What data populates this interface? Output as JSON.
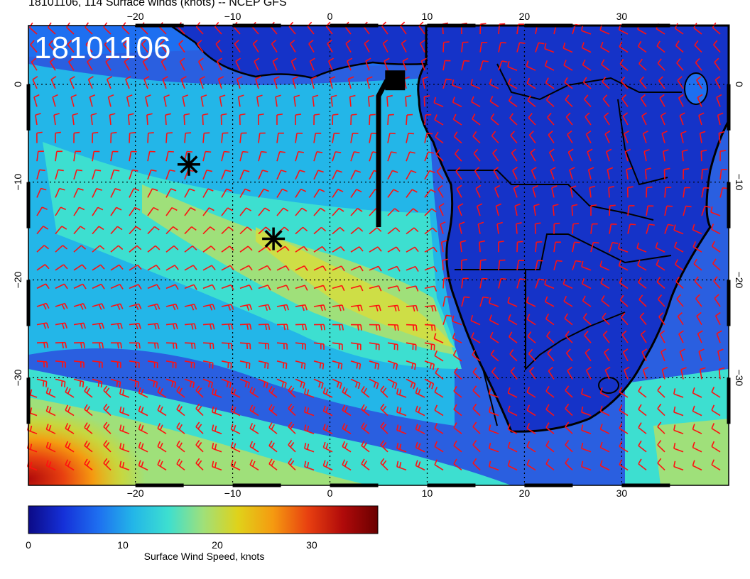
{
  "title": "18101106, 114 Surface winds (knots) -- NCEP GFS",
  "stamp": "18101106",
  "colorbar": {
    "label": "Surface Wind Speed, knots",
    "ticks": [
      "0",
      "10",
      "20",
      "30"
    ],
    "range": [
      0,
      37
    ],
    "colors": [
      "#0b0a86",
      "#1530d8",
      "#1e6ff0",
      "#23b6e8",
      "#3ddfd0",
      "#9fe07a",
      "#e0d21a",
      "#f59a10",
      "#e84010",
      "#b00a0a",
      "#6a0000"
    ]
  },
  "map": {
    "lon_range": [
      -31,
      41
    ],
    "lat_range": [
      -41,
      6
    ],
    "lon_ticks_top": [
      "−20",
      "−10",
      "0",
      "10",
      "20",
      "30"
    ],
    "lon_ticks_bottom": [
      "−20",
      "−10",
      "0",
      "10",
      "20",
      "30"
    ],
    "lat_ticks_left": [
      "0",
      "−10",
      "−20",
      "−30"
    ],
    "lat_ticks_right": [
      "0",
      "−10",
      "−20",
      "−30"
    ],
    "grid": true
  },
  "track": [
    {
      "lon": 5.0,
      "lat": -14.6
    },
    {
      "lon": 5.0,
      "lat": -1.2
    },
    {
      "lon": 5.8,
      "lat": 0.3
    },
    {
      "lon": 6.8,
      "lat": 0.3
    }
  ],
  "markers": [
    {
      "type": "asterisk",
      "lon": -14.5,
      "lat": -8.2
    },
    {
      "type": "asterisk",
      "lon": -5.8,
      "lat": -15.8
    },
    {
      "type": "square",
      "lon": 6.7,
      "lat": 0.4
    }
  ],
  "barb_color": "#ff1010"
}
